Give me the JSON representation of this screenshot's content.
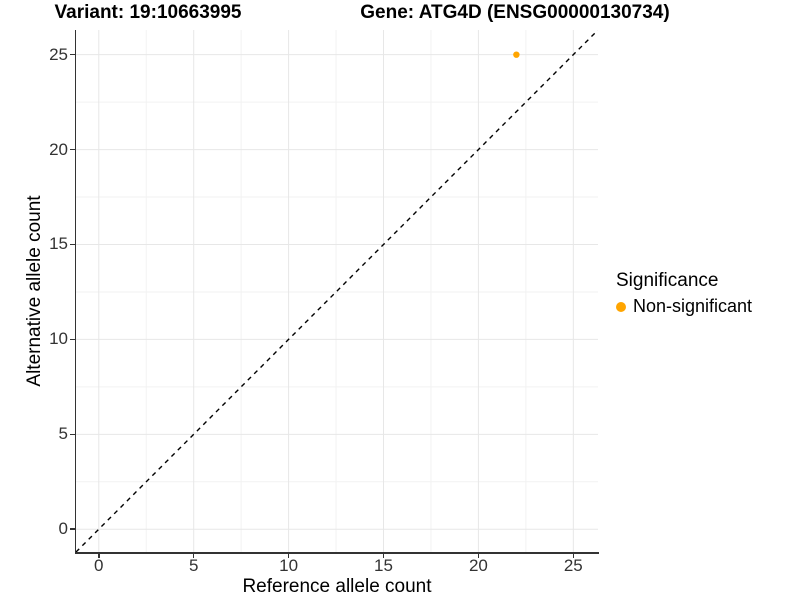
{
  "chart_data": {
    "type": "scatter",
    "title_variant": "Variant: 19:10663995",
    "title_gene": "Gene: ATG4D (ENSG00000130734)",
    "xlabel": "Reference allele count",
    "ylabel": "Alternative allele count",
    "xlim": [
      -1.2,
      26.3
    ],
    "ylim": [
      -1.2,
      26.3
    ],
    "x_ticks": [
      0,
      5,
      10,
      15,
      20,
      25
    ],
    "y_ticks": [
      0,
      5,
      10,
      15,
      20,
      25
    ],
    "minor_grid_step": 2.5,
    "grid": true,
    "points": [
      {
        "x": 22,
        "y": 25,
        "series": "Non-significant"
      }
    ],
    "identity_line": {
      "slope": 1,
      "intercept": 0,
      "style": "dashed",
      "color": "#000000"
    },
    "legend": {
      "title": "Significance",
      "position": "right",
      "entries": [
        {
          "label": "Non-significant",
          "color": "#FFA500"
        }
      ]
    },
    "colors": {
      "point": "#FFA500",
      "grid_major": "#E7E7E7",
      "grid_minor": "#F2F2F2",
      "axis": "#333333",
      "text": "#333333"
    }
  }
}
